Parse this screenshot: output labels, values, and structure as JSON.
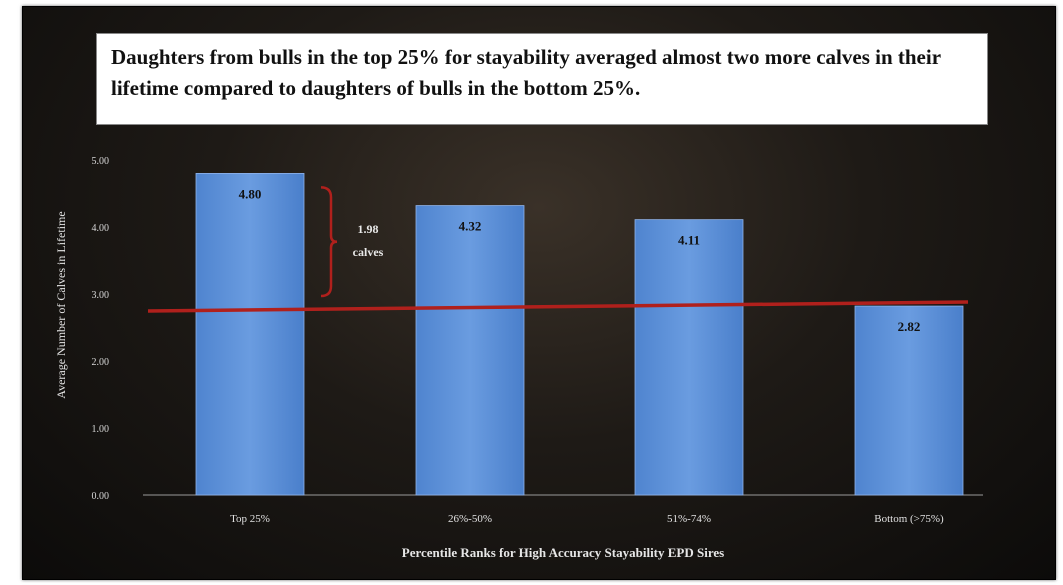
{
  "chart_data": {
    "type": "bar",
    "title": "Daughters from bulls in the top 25% for stayability averaged almost two more calves in their lifetime compared to daughters of bulls in the bottom 25%.",
    "xlabel": "Percentile Ranks for High Accuracy Stayability EPD Sires",
    "ylabel": "Average Number of Calves in Lifetime",
    "categories": [
      "Top 25%",
      "26%-50%",
      "51%-74%",
      "Bottom (>75%)"
    ],
    "values": [
      4.8,
      4.32,
      4.11,
      2.82
    ],
    "value_labels": [
      "4.80",
      "4.32",
      "4.11",
      "2.82"
    ],
    "ylim": [
      0,
      5
    ],
    "yticks": [
      "0.00",
      "1.00",
      "2.00",
      "3.00",
      "4.00",
      "5.00"
    ],
    "reference_line": 2.82,
    "annotation": {
      "line1": "1.98",
      "line2": "calves"
    },
    "colors": {
      "bar": "#5b8fd6",
      "bar_dark": "#3f70bd",
      "reference_line": "#b0201c",
      "text": "#e8e8e8"
    }
  }
}
